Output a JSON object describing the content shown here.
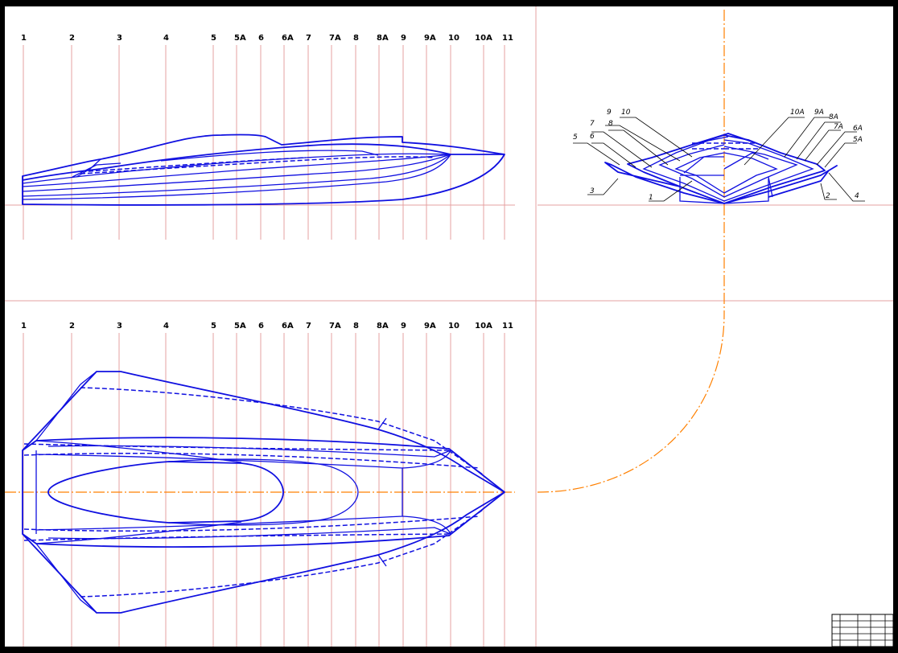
{
  "stations": [
    "1",
    "2",
    "3",
    "4",
    "5",
    "5A",
    "6",
    "6A",
    "7",
    "7A",
    "8",
    "8A",
    "9",
    "9A",
    "10",
    "10A",
    "11"
  ],
  "section_left_labels": [
    "10",
    "9",
    "8",
    "7",
    "6",
    "5",
    "3",
    "1"
  ],
  "section_right_labels": [
    "10A",
    "9A",
    "8A",
    "7A",
    "6A",
    "5A",
    "4",
    "2"
  ],
  "title_block": {
    "caption_left": "",
    "caption_right": ""
  },
  "colors": {
    "hull": "#1010e0",
    "grid": "#e6a0a0",
    "axis": "#ff8000",
    "border": "#000000"
  },
  "views": [
    "profile-view",
    "body-plan-view",
    "plan-view",
    "transfer-arc"
  ]
}
